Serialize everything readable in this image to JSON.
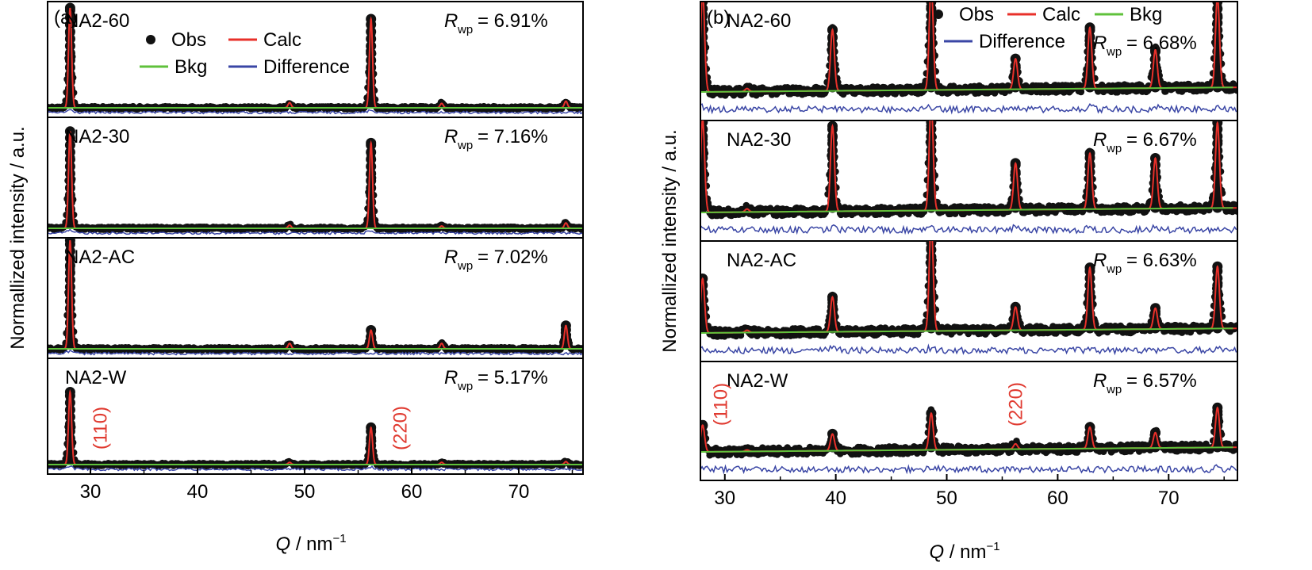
{
  "chart_data": [
    {
      "type": "line",
      "panel_label": "(a)",
      "xlabel_italic": "Q",
      "xlabel_unit": " / nm",
      "xlabel_exp": "−1",
      "ylabel": "Normallized intensity / a.u.",
      "xlim": [
        26,
        76
      ],
      "xticks": [
        30,
        40,
        50,
        60,
        70
      ],
      "xtick_labels": [
        "30",
        "40",
        "50",
        "60",
        "70"
      ],
      "legend": {
        "obs": "Obs",
        "calc": "Calc",
        "bkg": "Bkg",
        "diff": "Difference"
      },
      "peaks_q": [
        28.1,
        48.6,
        56.2,
        62.8,
        74.4
      ],
      "subplots": [
        {
          "name": "NA2-60",
          "rwp_value": " = 6.91%",
          "peak_heights": [
            1.35,
            0.07,
            1.2,
            0.06,
            0.09
          ]
        },
        {
          "name": "NA2-30",
          "rwp_value": " = 7.16%",
          "peak_heights": [
            1.25,
            0.04,
            1.1,
            0.03,
            0.07
          ]
        },
        {
          "name": "NA2-AC",
          "rwp_value": " = 7.02%",
          "peak_heights": [
            1.4,
            0.07,
            0.24,
            0.07,
            0.3
          ]
        },
        {
          "name": "NA2-W",
          "rwp_value": " = 5.17%",
          "peak_heights": [
            0.98,
            0.03,
            0.5,
            0.03,
            0.04
          ]
        }
      ],
      "annotations": [
        {
          "text": "(110)",
          "x": 31.5
        },
        {
          "text": "(220)",
          "x": 59.5
        }
      ]
    },
    {
      "type": "line",
      "panel_label": "(b)",
      "xlabel_italic": "Q",
      "xlabel_unit": " / nm",
      "xlabel_exp": "−1",
      "ylabel": "Normallized intensity / a.u.",
      "xlim": [
        27.8,
        76.2
      ],
      "xticks": [
        30,
        40,
        50,
        60,
        70
      ],
      "xtick_labels": [
        "30",
        "40",
        "50",
        "60",
        "70"
      ],
      "legend": {
        "obs": "Obs",
        "calc": "Calc",
        "bkg": "Bkg",
        "diff": "Difference"
      },
      "peaks_q": [
        28.0,
        32.0,
        39.7,
        48.6,
        56.2,
        62.9,
        68.8,
        74.4
      ],
      "subplots": [
        {
          "name": "NA2-60",
          "rwp_value": " = 6.68%",
          "peak_heights": [
            1.3,
            0.04,
            0.8,
            1.4,
            0.4,
            0.8,
            0.5,
            1.2
          ]
        },
        {
          "name": "NA2-30",
          "rwp_value": " = 6.67%",
          "peak_heights": [
            1.2,
            0.04,
            1.1,
            1.4,
            0.6,
            0.72,
            0.65,
            1.1
          ]
        },
        {
          "name": "NA2-AC",
          "rwp_value": " = 6.63%",
          "peak_heights": [
            0.7,
            0.03,
            0.45,
            1.4,
            0.3,
            0.8,
            0.27,
            0.8
          ]
        },
        {
          "name": "NA2-W",
          "rwp_value": " = 6.57%",
          "peak_heights": [
            0.35,
            0.02,
            0.22,
            0.48,
            0.07,
            0.28,
            0.2,
            0.52
          ]
        }
      ],
      "annotations": [
        {
          "text": "(110)",
          "x": 30.2
        },
        {
          "text": "(220)",
          "x": 56.8
        }
      ]
    }
  ],
  "rwp_symbol": "R",
  "rwp_sub": "wp"
}
